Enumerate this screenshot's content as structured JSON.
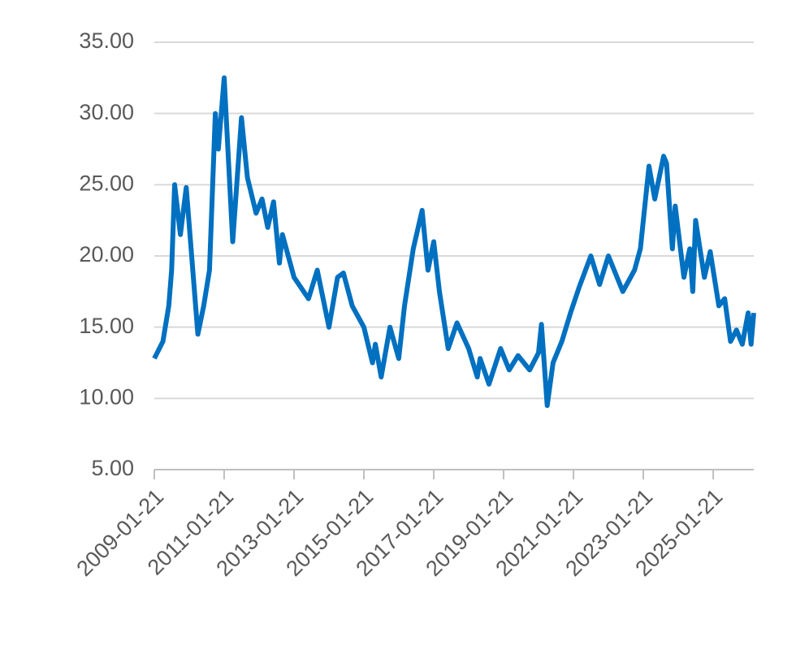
{
  "chart_data": {
    "type": "line",
    "x": [
      "2009-01-21",
      "2009-04-21",
      "2009-06-21",
      "2009-07-21",
      "2009-08-21",
      "2009-10-21",
      "2009-12-21",
      "2010-04-21",
      "2010-06-21",
      "2010-08-21",
      "2010-10-21",
      "2010-11-21",
      "2011-01-21",
      "2011-04-21",
      "2011-07-21",
      "2011-09-21",
      "2011-12-21",
      "2012-02-21",
      "2012-04-21",
      "2012-06-21",
      "2012-08-21",
      "2012-09-21",
      "2013-01-21",
      "2013-06-21",
      "2013-09-21",
      "2014-01-21",
      "2014-04-21",
      "2014-06-21",
      "2014-09-21",
      "2015-01-21",
      "2015-04-21",
      "2015-05-21",
      "2015-07-21",
      "2015-10-21",
      "2016-01-21",
      "2016-03-21",
      "2016-06-21",
      "2016-09-21",
      "2016-11-21",
      "2017-01-21",
      "2017-03-21",
      "2017-06-21",
      "2017-09-21",
      "2018-01-21",
      "2018-04-21",
      "2018-05-21",
      "2018-08-21",
      "2018-12-21",
      "2019-03-21",
      "2019-06-21",
      "2019-10-21",
      "2020-01-21",
      "2020-02-21",
      "2020-04-21",
      "2020-06-21",
      "2020-09-21",
      "2020-12-21",
      "2021-03-21",
      "2021-07-21",
      "2021-10-21",
      "2022-01-21",
      "2022-06-21",
      "2022-10-21",
      "2022-12-21",
      "2023-03-21",
      "2023-05-21",
      "2023-08-21",
      "2023-09-21",
      "2023-11-21",
      "2023-12-21",
      "2024-03-21",
      "2024-05-21",
      "2024-06-21",
      "2024-07-21",
      "2024-10-21",
      "2024-12-21",
      "2025-03-21",
      "2025-05-21",
      "2025-07-21",
      "2025-09-21",
      "2025-11-21",
      "2026-01-21",
      "2026-02-21",
      "2026-03-21"
    ],
    "series": [
      {
        "color": "#0070c0",
        "values": [
          12.8,
          14,
          16.5,
          19,
          25,
          21.5,
          24.8,
          14.5,
          16.5,
          19,
          30,
          27.5,
          32.5,
          21,
          29.7,
          25.5,
          23,
          24,
          22,
          23.8,
          19.5,
          21.5,
          18.5,
          17,
          19,
          15,
          18.5,
          18.8,
          16.5,
          15,
          12.5,
          13.8,
          11.5,
          15,
          12.8,
          16.5,
          20.5,
          23.2,
          19,
          21,
          17.5,
          13.5,
          15.3,
          13.5,
          11.5,
          12.8,
          11,
          13.5,
          12,
          13,
          12,
          13.2,
          15.2,
          9.5,
          12.5,
          14,
          16,
          17.8,
          20,
          18,
          20,
          17.5,
          19,
          20.5,
          26.3,
          24,
          27,
          26.5,
          20.5,
          23.5,
          18.5,
          20.5,
          17.5,
          22.5,
          18.5,
          20.3,
          16.5,
          17,
          14,
          14.8,
          13.8,
          16,
          13.8,
          16
        ]
      }
    ],
    "xlim": [
      "2009-01-21",
      "2026-03-21"
    ],
    "xticks": [
      "2009-01-21",
      "2011-01-21",
      "2013-01-21",
      "2015-01-21",
      "2017-01-21",
      "2019-01-21",
      "2021-01-21",
      "2023-01-21",
      "2025-01-21"
    ],
    "ylim": [
      5,
      35
    ],
    "yticks": [
      {
        "value": 5,
        "label": "5.00"
      },
      {
        "value": 10,
        "label": "10.00"
      },
      {
        "value": 15,
        "label": "15.00"
      },
      {
        "value": 20,
        "label": "20.00"
      },
      {
        "value": 25,
        "label": "25.00"
      },
      {
        "value": 30,
        "label": "30.00"
      },
      {
        "value": 35,
        "label": "35.00"
      }
    ],
    "grid": true
  }
}
